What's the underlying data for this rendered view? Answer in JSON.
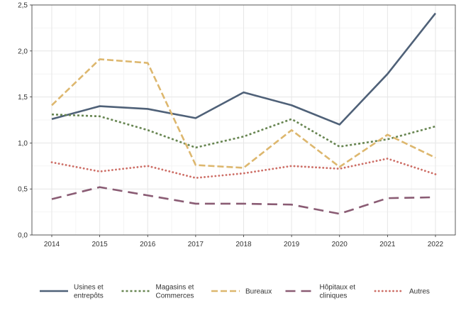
{
  "chart_data": {
    "type": "line",
    "title": "",
    "xlabel": "",
    "ylabel": "",
    "x": [
      2014,
      2015,
      2016,
      2017,
      2018,
      2019,
      2020,
      2021,
      2022
    ],
    "x_tick_labels": [
      "2014",
      "2015",
      "2016",
      "2017",
      "2018",
      "2019",
      "2020",
      "2021",
      "2022"
    ],
    "ylim": [
      0,
      2.5
    ],
    "y_ticks": [
      0,
      0.5,
      1.0,
      1.5,
      2.0,
      2.5
    ],
    "y_tick_labels": [
      "0,0",
      "0,5",
      "1,0",
      "1,5",
      "2,0",
      "2,5"
    ],
    "grid": true,
    "legend_position": "bottom",
    "series": [
      {
        "name": "Usines et entrepôts",
        "legend_lines": [
          "Usines et",
          "entrepôts"
        ],
        "color": "#4f6178",
        "dash": "solid",
        "values": [
          1.26,
          1.4,
          1.37,
          1.27,
          1.55,
          1.41,
          1.2,
          1.75,
          2.41
        ]
      },
      {
        "name": "Magasins et Commerces",
        "legend_lines": [
          "Magasins et",
          "Commerces"
        ],
        "color": "#678551",
        "dash": "dotted-square",
        "values": [
          1.31,
          1.29,
          1.14,
          0.95,
          1.07,
          1.26,
          0.96,
          1.04,
          1.18
        ]
      },
      {
        "name": "Bureaux",
        "legend_lines": [
          "Bureaux"
        ],
        "color": "#ddb76e",
        "dash": "dashed",
        "values": [
          1.41,
          1.91,
          1.87,
          0.76,
          0.73,
          1.14,
          0.74,
          1.09,
          0.84
        ]
      },
      {
        "name": "Hôpitaux et cliniques",
        "legend_lines": [
          "Hôpitaux et",
          "cliniques"
        ],
        "color": "#8a5c74",
        "dash": "long-dashed",
        "values": [
          0.39,
          0.52,
          0.43,
          0.34,
          0.34,
          0.33,
          0.23,
          0.4,
          0.41
        ]
      },
      {
        "name": "Autres",
        "legend_lines": [
          "Autres"
        ],
        "color": "#cd6e66",
        "dash": "dotted",
        "values": [
          0.79,
          0.69,
          0.75,
          0.62,
          0.67,
          0.75,
          0.72,
          0.83,
          0.66
        ]
      }
    ]
  }
}
